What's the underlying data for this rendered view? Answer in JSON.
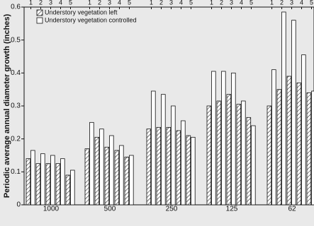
{
  "chart_data": {
    "type": "grouped-bar",
    "y_label": "Periodic average annual diameter growth (inches)",
    "categories": [
      "1000",
      "500",
      "250",
      "125",
      "62"
    ],
    "subgroups": [
      "1",
      "2",
      "3",
      "4",
      "5"
    ],
    "series": [
      {
        "name": "Understory vegetation left",
        "color": "#ffffff",
        "hatch": true,
        "values": [
          [
            0.14,
            0.125,
            0.125,
            0.125,
            0.09
          ],
          [
            0.17,
            0.205,
            0.175,
            0.165,
            0.145
          ],
          [
            0.23,
            0.235,
            0.235,
            0.225,
            0.21
          ],
          [
            0.3,
            0.315,
            0.335,
            0.305,
            0.265
          ],
          [
            0.3,
            0.35,
            0.39,
            0.37,
            0.34
          ]
        ]
      },
      {
        "name": "Understory vegetation controlled",
        "color": "#ffffff",
        "hatch": false,
        "values": [
          [
            0.165,
            0.155,
            0.15,
            0.14,
            0.105
          ],
          [
            0.25,
            0.23,
            0.21,
            0.18,
            0.15
          ],
          [
            0.345,
            0.335,
            0.3,
            0.255,
            0.205
          ],
          [
            0.405,
            0.405,
            0.4,
            0.315,
            0.24
          ],
          [
            0.41,
            0.585,
            0.56,
            0.455,
            0.345
          ]
        ]
      }
    ],
    "ylim": [
      0,
      0.6
    ],
    "yticks": [
      0,
      0.1,
      0.2,
      0.3,
      0.4,
      0.5,
      0.6
    ]
  }
}
